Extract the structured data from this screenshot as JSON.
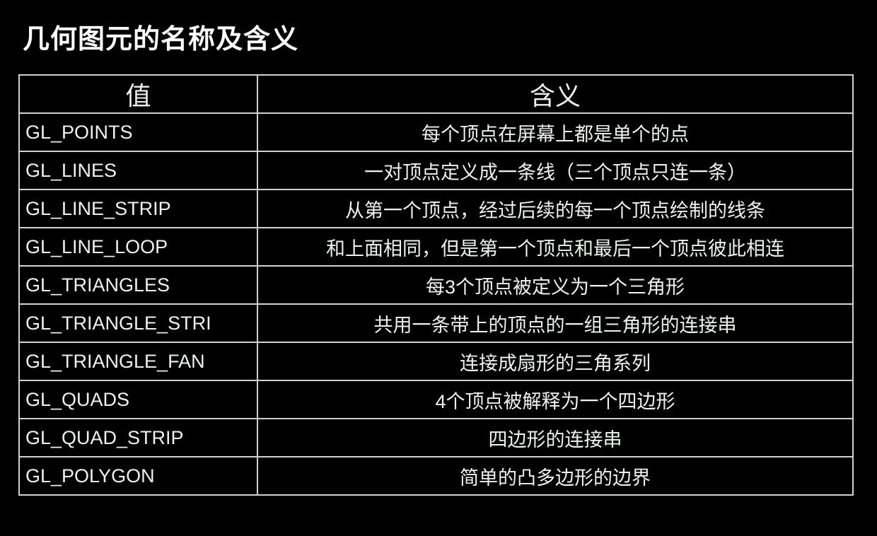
{
  "title": "几何图元的名称及含义",
  "table": {
    "headers": [
      "值",
      "含义"
    ],
    "rows": [
      {
        "value": "GL_POINTS",
        "meaning": "每个顶点在屏幕上都是单个的点"
      },
      {
        "value": "GL_LINES",
        "meaning": "一对顶点定义成一条线（三个顶点只连一条）"
      },
      {
        "value": "GL_LINE_STRIP",
        "meaning": "从第一个顶点，经过后续的每一个顶点绘制的线条"
      },
      {
        "value": "GL_LINE_LOOP",
        "meaning": "和上面相同，但是第一个顶点和最后一个顶点彼此相连"
      },
      {
        "value": "GL_TRIANGLES",
        "meaning": "每3个顶点被定义为一个三角形"
      },
      {
        "value": "GL_TRIANGLE_STRI",
        "meaning": "共用一条带上的顶点的一组三角形的连接串"
      },
      {
        "value": "GL_TRIANGLE_FAN",
        "meaning": "连接成扇形的三角系列"
      },
      {
        "value": "GL_QUADS",
        "meaning": "4个顶点被解释为一个四边形"
      },
      {
        "value": "GL_QUAD_STRIP",
        "meaning": "四边形的连接串"
      },
      {
        "value": "GL_POLYGON",
        "meaning": "简单的凸多边形的边界"
      }
    ]
  }
}
